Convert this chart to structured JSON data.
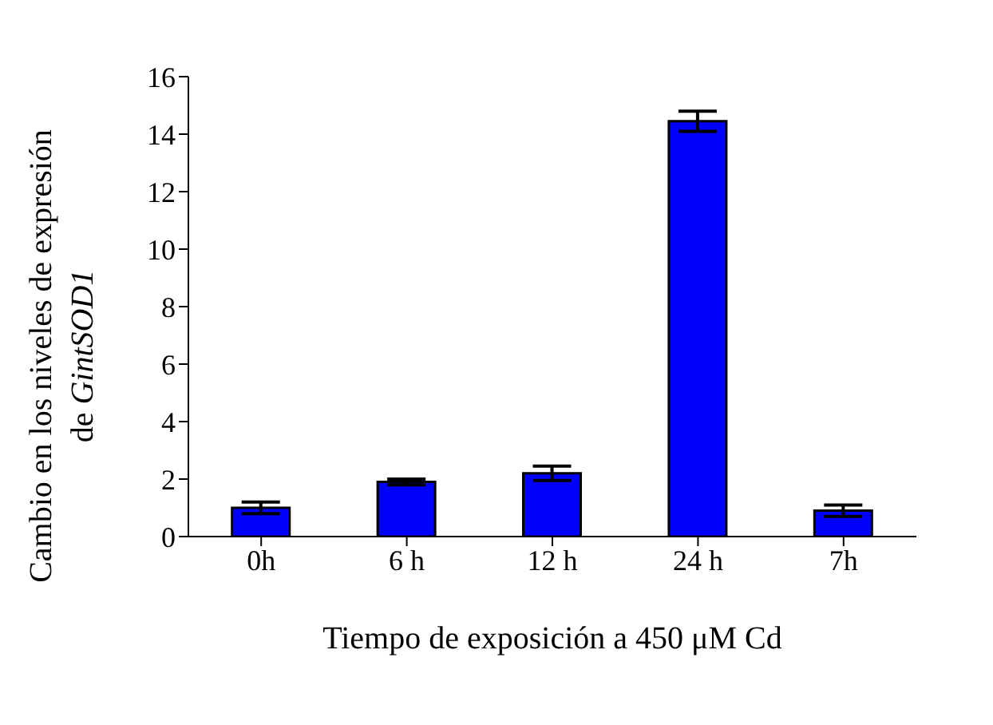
{
  "chart_data": {
    "type": "bar",
    "xlabel": "Tiempo de exposición a 450 μM Cd",
    "ylabel": "Cambio en los niveles de expresión de GintSOD1",
    "categories": [
      "0h",
      "6 h",
      "12 h",
      "24 h",
      "7h"
    ],
    "values": [
      1.0,
      1.9,
      2.2,
      14.45,
      0.9
    ],
    "errors": [
      0.2,
      0.1,
      0.25,
      0.35,
      0.2
    ],
    "color": "#0000ff",
    "ylim": [
      0,
      16
    ],
    "yticks": [
      0,
      2,
      4,
      6,
      8,
      10,
      12,
      14,
      16
    ],
    "grid": false,
    "legend": false
  }
}
